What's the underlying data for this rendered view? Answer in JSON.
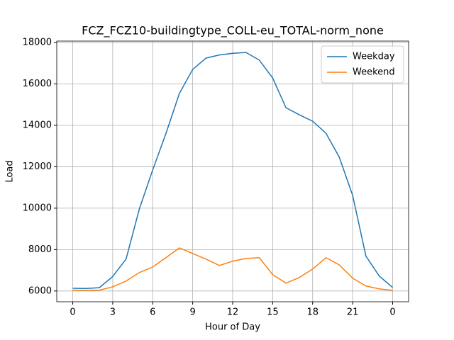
{
  "chart_data": {
    "type": "line",
    "title": "FCZ_FCZ10-buildingtype_COLL-eu_TOTAL-norm_none",
    "xlabel": "Hour of Day",
    "ylabel": "Load",
    "x": [
      0,
      1,
      2,
      3,
      4,
      5,
      6,
      7,
      8,
      9,
      10,
      11,
      12,
      13,
      14,
      15,
      16,
      17,
      18,
      19,
      20,
      21,
      22,
      23,
      24
    ],
    "series": [
      {
        "name": "Weekday",
        "color": "#1f77b4",
        "values": [
          6130,
          6120,
          6160,
          6700,
          7540,
          9970,
          11850,
          13620,
          15540,
          16700,
          17250,
          17400,
          17480,
          17520,
          17150,
          16290,
          14850,
          14510,
          14200,
          13620,
          12460,
          10620,
          7680,
          6720,
          6170
        ]
      },
      {
        "name": "Weekend",
        "color": "#ff7f0e",
        "values": [
          6030,
          6030,
          6040,
          6200,
          6480,
          6890,
          7160,
          7610,
          8080,
          7810,
          7540,
          7230,
          7440,
          7570,
          7610,
          6790,
          6380,
          6650,
          7060,
          7610,
          7260,
          6620,
          6240,
          6100,
          6030
        ]
      }
    ],
    "xlim": [
      -1.2,
      25.2
    ],
    "xticks": [
      0,
      3,
      6,
      9,
      12,
      15,
      18,
      21,
      {
        "value": 24,
        "label": "0"
      }
    ],
    "ylim": [
      5480,
      18070
    ],
    "yticks": [
      6000,
      8000,
      10000,
      12000,
      14000,
      16000,
      18000
    ],
    "grid": true,
    "legend": "upper-right"
  }
}
